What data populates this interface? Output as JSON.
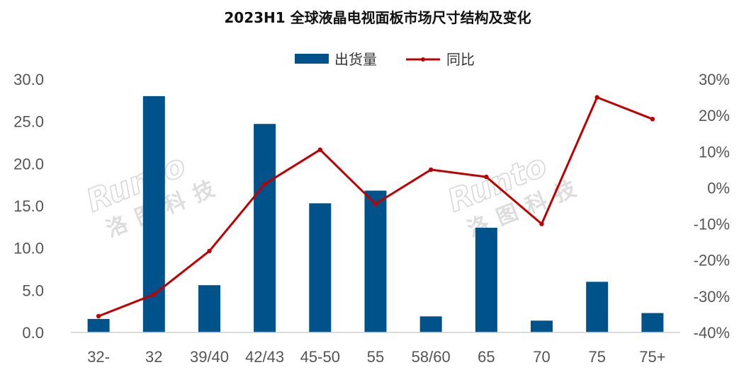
{
  "chart_data": {
    "type": "bar",
    "title": "2023H1 全球液晶电视面板市场尺寸结构及变化",
    "categories": [
      "32-",
      "32",
      "39/40",
      "42/43",
      "45-50",
      "55",
      "58/60",
      "65",
      "70",
      "75",
      "75+"
    ],
    "series": [
      {
        "name": "出货量",
        "type": "bar",
        "axis": "left",
        "color": "#00538a",
        "values": [
          1.6,
          28.0,
          5.6,
          24.7,
          15.3,
          16.8,
          1.9,
          12.4,
          1.4,
          6.0,
          2.3
        ]
      },
      {
        "name": "同比",
        "type": "line",
        "axis": "right",
        "color": "#c00000",
        "values": [
          -35.5,
          -29.5,
          -17.5,
          1.0,
          10.5,
          -4.5,
          5.0,
          3.0,
          -10.0,
          25.0,
          19.0
        ]
      }
    ],
    "y_left": {
      "min": 0,
      "max": 30,
      "ticks": [
        "0.0",
        "5.0",
        "10.0",
        "15.0",
        "20.0",
        "25.0",
        "30.0"
      ]
    },
    "y_right": {
      "min": -40,
      "max": 30,
      "ticks": [
        "-40%",
        "-30%",
        "-20%",
        "-10%",
        "0%",
        "10%",
        "20%",
        "30%"
      ]
    },
    "legend_position": "top",
    "grid": false
  },
  "watermark": {
    "latin": "Runto",
    "chinese": "洛图科技"
  }
}
